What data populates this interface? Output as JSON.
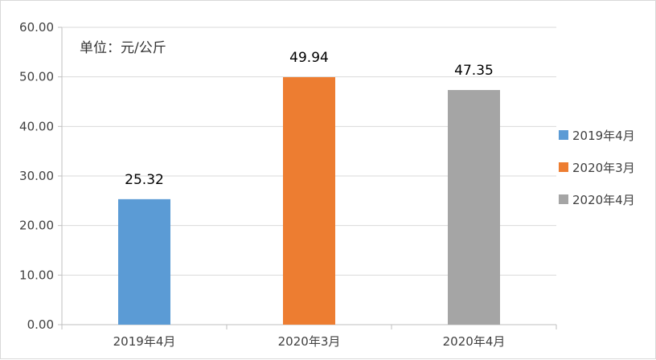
{
  "chart_data": {
    "type": "bar",
    "unit_note": "单位：元/公斤",
    "categories": [
      "2019年4月",
      "2020年3月",
      "2020年4月"
    ],
    "values": [
      25.32,
      49.94,
      47.35
    ],
    "value_labels": [
      "25.32",
      "49.94",
      "47.35"
    ],
    "colors": [
      "#5b9bd5",
      "#ed7d31",
      "#a5a5a5"
    ],
    "ylim": [
      0,
      60
    ],
    "yticks": [
      "0.00",
      "10.00",
      "20.00",
      "30.00",
      "40.00",
      "50.00",
      "60.00"
    ],
    "grid": true,
    "legend": {
      "position": "right",
      "entries": [
        "2019年4月",
        "2020年3月",
        "2020年4月"
      ]
    }
  }
}
